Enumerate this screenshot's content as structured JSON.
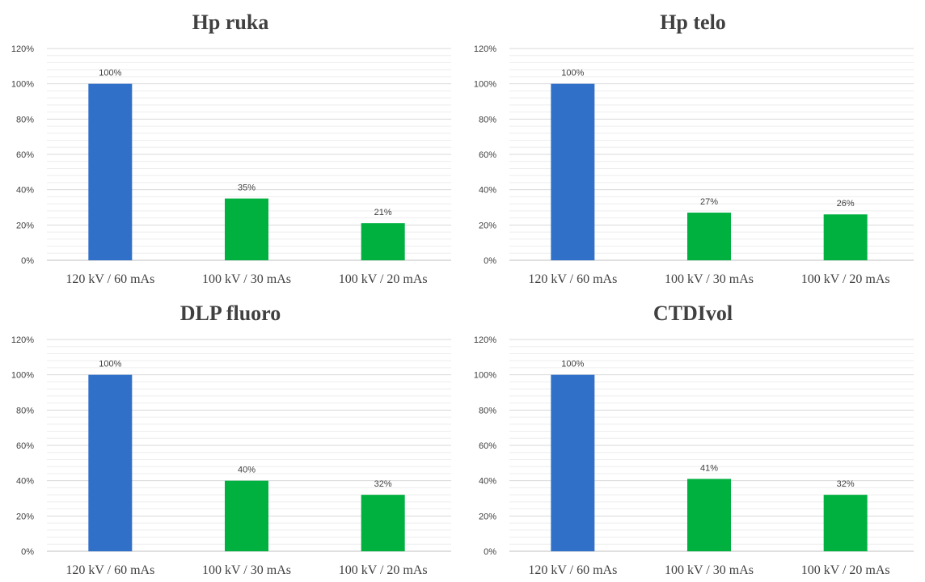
{
  "chart_data": [
    {
      "type": "bar",
      "title": "Hp ruka",
      "categories": [
        "120 kV / 60 mAs",
        "100 kV / 30 mAs",
        "100 kV / 20 mAs"
      ],
      "values": [
        100,
        35,
        21
      ],
      "data_labels": [
        "100%",
        "35%",
        "21%"
      ],
      "bar_colors": [
        "#3170c9",
        "#00b140",
        "#00b140"
      ],
      "ylim": [
        0,
        120
      ],
      "yticks": [
        0,
        20,
        40,
        60,
        80,
        100,
        120
      ],
      "ytick_labels": [
        "0%",
        "20%",
        "40%",
        "60%",
        "80%",
        "100%",
        "120%"
      ],
      "grid": true,
      "xlabel": "",
      "ylabel": ""
    },
    {
      "type": "bar",
      "title": "Hp telo",
      "categories": [
        "120 kV / 60 mAs",
        "100 kV / 30 mAs",
        "100 kV / 20 mAs"
      ],
      "values": [
        100,
        27,
        26
      ],
      "data_labels": [
        "100%",
        "27%",
        "26%"
      ],
      "bar_colors": [
        "#3170c9",
        "#00b140",
        "#00b140"
      ],
      "ylim": [
        0,
        120
      ],
      "yticks": [
        0,
        20,
        40,
        60,
        80,
        100,
        120
      ],
      "ytick_labels": [
        "0%",
        "20%",
        "40%",
        "60%",
        "80%",
        "100%",
        "120%"
      ],
      "grid": true,
      "xlabel": "",
      "ylabel": ""
    },
    {
      "type": "bar",
      "title": "DLP fluoro",
      "categories": [
        "120 kV / 60 mAs",
        "100 kV / 30 mAs",
        "100 kV / 20 mAs"
      ],
      "values": [
        100,
        40,
        32
      ],
      "data_labels": [
        "100%",
        "40%",
        "32%"
      ],
      "bar_colors": [
        "#3170c9",
        "#00b140",
        "#00b140"
      ],
      "ylim": [
        0,
        120
      ],
      "yticks": [
        0,
        20,
        40,
        60,
        80,
        100,
        120
      ],
      "ytick_labels": [
        "0%",
        "20%",
        "40%",
        "60%",
        "80%",
        "100%",
        "120%"
      ],
      "grid": true,
      "xlabel": "",
      "ylabel": ""
    },
    {
      "type": "bar",
      "title": "CTDIvol",
      "categories": [
        "120 kV / 60 mAs",
        "100 kV / 30 mAs",
        "100 kV / 20 mAs"
      ],
      "values": [
        100,
        41,
        32
      ],
      "data_labels": [
        "100%",
        "41%",
        "32%"
      ],
      "bar_colors": [
        "#3170c9",
        "#00b140",
        "#00b140"
      ],
      "ylim": [
        0,
        120
      ],
      "yticks": [
        0,
        20,
        40,
        60,
        80,
        100,
        120
      ],
      "ytick_labels": [
        "0%",
        "20%",
        "40%",
        "60%",
        "80%",
        "100%",
        "120%"
      ],
      "grid": true,
      "xlabel": "",
      "ylabel": ""
    }
  ]
}
